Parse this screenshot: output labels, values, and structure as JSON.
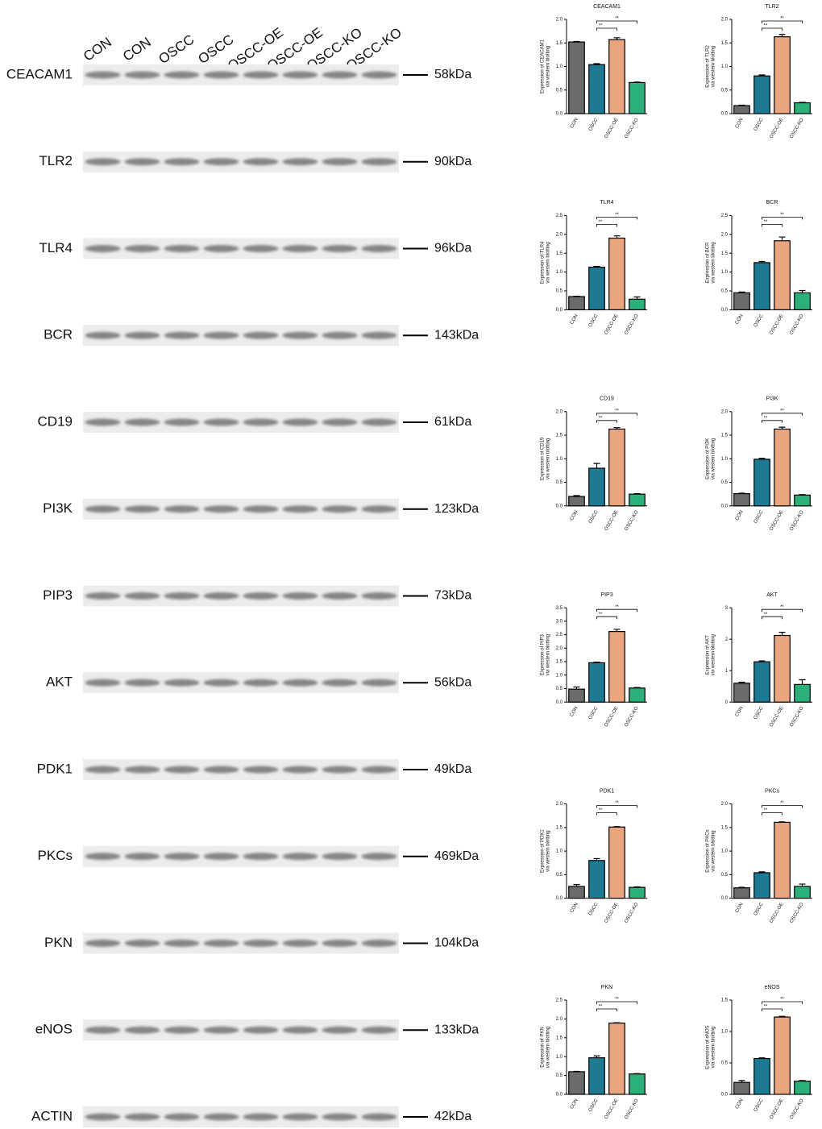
{
  "blot": {
    "lanes": [
      "CON",
      "CON",
      "OSCC",
      "OSCC",
      "OSCC-OE",
      "OSCC-OE",
      "OSCC-KO",
      "OSCC-KO"
    ],
    "proteins": [
      {
        "name": "CEACAM1",
        "size": "58kDa"
      },
      {
        "name": "TLR2",
        "size": "90kDa"
      },
      {
        "name": "TLR4",
        "size": "96kDa"
      },
      {
        "name": "BCR",
        "size": "143kDa"
      },
      {
        "name": "CD19",
        "size": "61kDa"
      },
      {
        "name": "PI3K",
        "size": "123kDa"
      },
      {
        "name": "PIP3",
        "size": "73kDa"
      },
      {
        "name": "AKT",
        "size": "56kDa"
      },
      {
        "name": "PDK1",
        "size": "49kDa"
      },
      {
        "name": "PKCs",
        "size": "469kDa"
      },
      {
        "name": "PKN",
        "size": "104kDa"
      },
      {
        "name": "eNOS",
        "size": "133kDa"
      },
      {
        "name": "ACTIN",
        "size": "42kDa"
      }
    ]
  },
  "chart_data": [
    {
      "type": "bar",
      "title": "CEACAM1",
      "ylabel": [
        "Expression of CEACAM1",
        "via western blotting"
      ],
      "categories": [
        "CON",
        "OSCC",
        "OSCC-OE",
        "OSCC-KO"
      ],
      "colors": [
        "#6b6b6e",
        "#1e7a93",
        "#e8a57e",
        "#2bb07a"
      ],
      "values": [
        1.52,
        1.04,
        1.57,
        0.66
      ],
      "errors": [
        0.01,
        0.02,
        0.04,
        0.01
      ],
      "ylim": [
        0,
        2
      ],
      "yticks": [
        {
          "value": 0,
          "label": "0.0"
        },
        0.5,
        {
          "value": 1,
          "label": "1.0"
        },
        1.5,
        {
          "value": 2,
          "label": "2.0"
        }
      ],
      "annotations": [
        "**",
        "**"
      ]
    },
    {
      "type": "bar",
      "title": "TLR2",
      "ylabel": [
        "Expression of TLR2",
        "via western blotting"
      ],
      "categories": [
        "CON",
        "OSCC",
        "OSCC-OE",
        "OSCC-KO"
      ],
      "colors": [
        "#6b6b6e",
        "#1e7a93",
        "#e8a57e",
        "#2bb07a"
      ],
      "values": [
        0.17,
        0.8,
        1.63,
        0.23
      ],
      "errors": [
        0.01,
        0.02,
        0.05,
        0.01
      ],
      "ylim": [
        0,
        2
      ],
      "yticks": [
        {
          "value": 0,
          "label": "0.0"
        },
        0.5,
        {
          "value": 1,
          "label": "1.0"
        },
        1.5,
        {
          "value": 2,
          "label": "2.0"
        }
      ],
      "annotations": [
        "**",
        "**"
      ]
    },
    {
      "type": "bar",
      "title": "TLR4",
      "ylabel": [
        "Expression of TLR4",
        "via western blotting"
      ],
      "categories": [
        "CON",
        "OSCC",
        "OSCC-OE",
        "OSCC-KO"
      ],
      "colors": [
        "#6b6b6e",
        "#1e7a93",
        "#e8a57e",
        "#2bb07a"
      ],
      "values": [
        0.35,
        1.13,
        1.9,
        0.28
      ],
      "errors": [
        0.01,
        0.02,
        0.06,
        0.06
      ],
      "ylim": [
        0,
        2.5
      ],
      "yticks": [
        {
          "value": 0,
          "label": "0.0"
        },
        0.5,
        {
          "value": 1,
          "label": "1.0"
        },
        1.5,
        {
          "value": 2,
          "label": "2.0"
        },
        2.5
      ],
      "annotations": [
        "**",
        "**"
      ]
    },
    {
      "type": "bar",
      "title": "BCR",
      "ylabel": [
        "Expression of BCR",
        "via western blotting"
      ],
      "categories": [
        "CON",
        "OSCC",
        "OSCC-OE",
        "OSCC-KO"
      ],
      "colors": [
        "#6b6b6e",
        "#1e7a93",
        "#e8a57e",
        "#2bb07a"
      ],
      "values": [
        0.45,
        1.25,
        1.83,
        0.45
      ],
      "errors": [
        0.02,
        0.03,
        0.1,
        0.06
      ],
      "ylim": [
        0,
        2.5
      ],
      "yticks": [
        {
          "value": 0,
          "label": "0.0"
        },
        0.5,
        {
          "value": 1,
          "label": "1.0"
        },
        1.5,
        {
          "value": 2,
          "label": "2.0"
        },
        2.5
      ],
      "annotations": [
        "**",
        "**"
      ]
    },
    {
      "type": "bar",
      "title": "CD19",
      "ylabel": [
        "Expression of CD19",
        "via western blotting"
      ],
      "categories": [
        "CON",
        "OSCC",
        "OSCC-OE",
        "OSCC-KO"
      ],
      "colors": [
        "#6b6b6e",
        "#1e7a93",
        "#e8a57e",
        "#2bb07a"
      ],
      "values": [
        0.2,
        0.8,
        1.63,
        0.25
      ],
      "errors": [
        0.02,
        0.1,
        0.03,
        0.01
      ],
      "ylim": [
        0,
        2
      ],
      "yticks": [
        {
          "value": 0,
          "label": "0.0"
        },
        0.5,
        {
          "value": 1,
          "label": "1.0"
        },
        1.5,
        {
          "value": 2,
          "label": "2.0"
        }
      ],
      "annotations": [
        "**",
        "**"
      ]
    },
    {
      "type": "bar",
      "title": "PI3K",
      "ylabel": [
        "Expression of PI3K",
        "via western blotting"
      ],
      "categories": [
        "CON",
        "OSCC",
        "OSCC-OE",
        "OSCC-KO"
      ],
      "colors": [
        "#6b6b6e",
        "#1e7a93",
        "#e8a57e",
        "#2bb07a"
      ],
      "values": [
        0.26,
        0.99,
        1.63,
        0.23
      ],
      "errors": [
        0.01,
        0.02,
        0.04,
        0.01
      ],
      "ylim": [
        0,
        2
      ],
      "yticks": [
        {
          "value": 0,
          "label": "0.0"
        },
        0.5,
        {
          "value": 1,
          "label": "1.0"
        },
        1.5,
        {
          "value": 2,
          "label": "2.0"
        }
      ],
      "annotations": [
        "**",
        "**"
      ]
    },
    {
      "type": "bar",
      "title": "PIP3",
      "ylabel": [
        "Expression of PIP3",
        "via western blotting"
      ],
      "categories": [
        "CON",
        "OSCC",
        "OSCC-OE",
        "OSCC-KO"
      ],
      "colors": [
        "#6b6b6e",
        "#1e7a93",
        "#e8a57e",
        "#2bb07a"
      ],
      "values": [
        0.48,
        1.46,
        2.62,
        0.52
      ],
      "errors": [
        0.08,
        0.02,
        0.08,
        0.02
      ],
      "ylim": [
        0,
        3.5
      ],
      "yticks": [
        {
          "value": 0,
          "label": "0.0"
        },
        0.5,
        {
          "value": 1,
          "label": "1.0"
        },
        1.5,
        {
          "value": 2,
          "label": "2.0"
        },
        2.5,
        {
          "value": 3,
          "label": "3.0"
        },
        3.5
      ],
      "annotations": [
        "**",
        "**"
      ]
    },
    {
      "type": "bar",
      "title": "AKT",
      "ylabel": [
        "Expression of AKT",
        "via western blotting"
      ],
      "categories": [
        "CON",
        "OSCC",
        "OSCC-OE",
        "OSCC-KO"
      ],
      "colors": [
        "#6b6b6e",
        "#1e7a93",
        "#e8a57e",
        "#2bb07a"
      ],
      "values": [
        0.6,
        1.28,
        2.12,
        0.56
      ],
      "errors": [
        0.03,
        0.03,
        0.1,
        0.15
      ],
      "ylim": [
        0,
        3
      ],
      "yticks": [
        0,
        1,
        2,
        3
      ],
      "annotations": [
        "**",
        "**"
      ]
    },
    {
      "type": "bar",
      "title": "PDK1",
      "ylabel": [
        "Expression of PDK1",
        "via western blotting"
      ],
      "categories": [
        "CON",
        "OSCC",
        "OSCC-OE",
        "OSCC-KO"
      ],
      "colors": [
        "#6b6b6e",
        "#1e7a93",
        "#e8a57e",
        "#2bb07a"
      ],
      "values": [
        0.25,
        0.8,
        1.51,
        0.23
      ],
      "errors": [
        0.04,
        0.04,
        0.01,
        0.01
      ],
      "ylim": [
        0,
        2
      ],
      "yticks": [
        {
          "value": 0,
          "label": "0.0"
        },
        0.5,
        {
          "value": 1,
          "label": "1.0"
        },
        1.5,
        {
          "value": 2,
          "label": "2.0"
        }
      ],
      "annotations": [
        "**",
        "**"
      ]
    },
    {
      "type": "bar",
      "title": "PKCs",
      "ylabel": [
        "Expression of PKCs",
        "via western blotting"
      ],
      "categories": [
        "CON",
        "OSCC",
        "OSCC-OE",
        "OSCC-KO"
      ],
      "colors": [
        "#6b6b6e",
        "#1e7a93",
        "#e8a57e",
        "#2bb07a"
      ],
      "values": [
        0.22,
        0.54,
        1.61,
        0.25
      ],
      "errors": [
        0.01,
        0.02,
        0.01,
        0.05
      ],
      "ylim": [
        0,
        2
      ],
      "yticks": [
        {
          "value": 0,
          "label": "0.0"
        },
        0.5,
        {
          "value": 1,
          "label": "1.0"
        },
        1.5,
        {
          "value": 2,
          "label": "2.0"
        }
      ],
      "annotations": [
        "**",
        "**"
      ]
    },
    {
      "type": "bar",
      "title": "PKN",
      "ylabel": [
        "Expression of PKN",
        "via western blotting"
      ],
      "categories": [
        "CON",
        "OSCC",
        "OSCC-OE",
        "OSCC-KO"
      ],
      "colors": [
        "#6b6b6e",
        "#1e7a93",
        "#e8a57e",
        "#2bb07a"
      ],
      "values": [
        0.6,
        0.97,
        1.89,
        0.54
      ],
      "errors": [
        0.01,
        0.05,
        0.01,
        0.01
      ],
      "ylim": [
        0,
        2.5
      ],
      "yticks": [
        {
          "value": 0,
          "label": "0.0"
        },
        0.5,
        {
          "value": 1,
          "label": "1.0"
        },
        1.5,
        {
          "value": 2,
          "label": "2.0"
        },
        2.5
      ],
      "annotations": [
        "**",
        "**"
      ]
    },
    {
      "type": "bar",
      "title": "eNOS",
      "ylabel": [
        "Expression of eNOS",
        "via western blotting"
      ],
      "categories": [
        "CON",
        "OSCC",
        "OSCC-OE",
        "OSCC-KO"
      ],
      "colors": [
        "#6b6b6e",
        "#1e7a93",
        "#e8a57e",
        "#2bb07a"
      ],
      "values": [
        0.19,
        0.57,
        1.23,
        0.21
      ],
      "errors": [
        0.03,
        0.01,
        0.01,
        0.01
      ],
      "ylim": [
        0,
        1.5
      ],
      "yticks": [
        {
          "value": 0,
          "label": "0.0"
        },
        0.5,
        {
          "value": 1,
          "label": "1.0"
        },
        1.5
      ],
      "annotations": [
        "**",
        "**"
      ]
    }
  ]
}
